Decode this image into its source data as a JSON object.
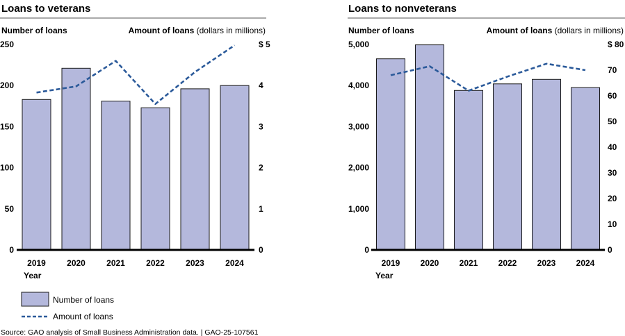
{
  "colors": {
    "bar_fill": "#b4b8dc",
    "bar_stroke": "#1a1a1a",
    "line": "#2b5a9a",
    "rule": "#555555",
    "baseline": "#000000"
  },
  "chart_data": [
    {
      "type": "bar",
      "title": "Loans to veterans",
      "left_axis_title": "Number of loans",
      "right_axis_title": "Amount of loans",
      "right_axis_unit": "(dollars in millions)",
      "xlabel": "Year",
      "categories": [
        "2019",
        "2020",
        "2021",
        "2022",
        "2023",
        "2024"
      ],
      "series": [
        {
          "name": "Number of loans",
          "type": "bar",
          "axis": "left",
          "values": [
            183,
            221,
            181,
            173,
            196,
            200
          ]
        },
        {
          "name": "Amount of loans",
          "type": "line",
          "style": "dashed",
          "axis": "right",
          "values": [
            3.83,
            3.98,
            4.6,
            3.55,
            4.33,
            4.98
          ]
        }
      ],
      "ylim_left": [
        0,
        250
      ],
      "yticks_left": [
        "0",
        "50",
        "100",
        "150",
        "200",
        "250"
      ],
      "ylim_right": [
        0,
        5
      ],
      "yticks_right": [
        "0",
        "1",
        "2",
        "3",
        "4",
        "$ 5"
      ],
      "grid": false
    },
    {
      "type": "bar",
      "title": "Loans to nonveterans",
      "left_axis_title": "Number of loans",
      "right_axis_title": "Amount of loans",
      "right_axis_unit": "(dollars in millions)",
      "xlabel": "Year",
      "categories": [
        "2019",
        "2020",
        "2021",
        "2022",
        "2023",
        "2024"
      ],
      "series": [
        {
          "name": "Number of loans",
          "type": "bar",
          "axis": "left",
          "values": [
            4650,
            4990,
            3880,
            4040,
            4150,
            3950
          ]
        },
        {
          "name": "Amount of loans",
          "type": "line",
          "style": "dashed",
          "axis": "right",
          "values": [
            68,
            71.5,
            62,
            67.5,
            72.5,
            70
          ]
        }
      ],
      "ylim_left": [
        0,
        5000
      ],
      "yticks_left": [
        "0",
        "1,000",
        "2,000",
        "3,000",
        "4,000",
        "5,000"
      ],
      "ylim_right": [
        0,
        80
      ],
      "yticks_right": [
        "0",
        "10",
        "20",
        "30",
        "40",
        "50",
        "60",
        "70",
        "$ 80"
      ],
      "grid": false
    }
  ],
  "legend": {
    "placement": "bottom-left",
    "bar_label": "Number of loans",
    "line_label": "Amount of loans"
  },
  "source": "Source: GAO analysis of Small Business Administration data.  |  GAO-25-107561"
}
